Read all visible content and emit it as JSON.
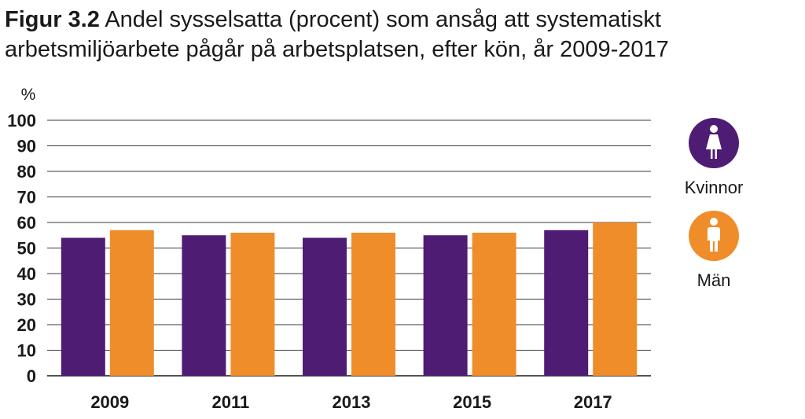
{
  "title": {
    "figure_label": "Figur 3.2",
    "text": "Andel sysselsatta (procent) som ansåg att systematiskt arbetsmiljöarbete pågår på arbetsplatsen, efter kön, år 2009-2017"
  },
  "chart_data": {
    "type": "bar",
    "ylabel": "%",
    "xlabel": "",
    "categories": [
      "2009",
      "2011",
      "2013",
      "2015",
      "2017"
    ],
    "ylim": [
      0,
      100
    ],
    "yticks": [
      0,
      10,
      20,
      30,
      40,
      50,
      60,
      70,
      80,
      90,
      100
    ],
    "grid": true,
    "legend_position": "right",
    "series": [
      {
        "name": "Kvinnor",
        "color": "#4f1c74",
        "icon": "woman-icon",
        "values": [
          54,
          55,
          54,
          55,
          57
        ]
      },
      {
        "name": "Män",
        "color": "#f08d2b",
        "icon": "man-icon",
        "values": [
          57,
          56,
          56,
          56,
          60
        ]
      }
    ]
  }
}
